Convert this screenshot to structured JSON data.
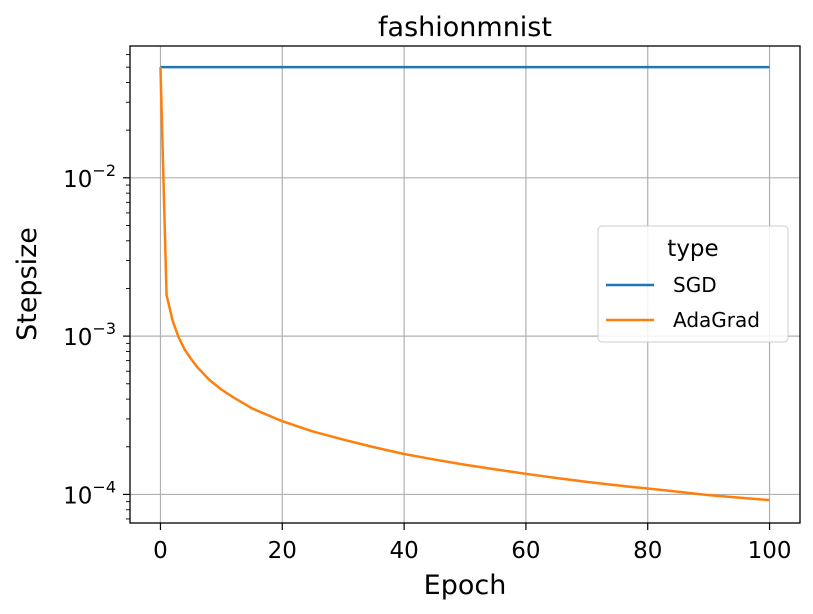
{
  "chart_data": {
    "type": "line",
    "title": "fashionmnist",
    "xlabel": "Epoch",
    "ylabel": "Stepsize",
    "xlim": [
      -5,
      105
    ],
    "ylim": [
      6.6e-05,
      0.068
    ],
    "yscale": "log",
    "grid": true,
    "x_ticks": [
      0,
      20,
      40,
      60,
      80,
      100
    ],
    "x_tick_labels": [
      "0",
      "20",
      "40",
      "60",
      "80",
      "100"
    ],
    "y_ticks": [
      0.0001,
      0.001,
      0.01
    ],
    "y_tick_labels": [
      {
        "base": "10",
        "exp": "−4"
      },
      {
        "base": "10",
        "exp": "−3"
      },
      {
        "base": "10",
        "exp": "−2"
      }
    ],
    "legend": {
      "title": "type",
      "placement": "center-right"
    },
    "series": [
      {
        "name": "SGD",
        "color": "#1f77b4",
        "x": [
          0,
          100
        ],
        "y": [
          0.05,
          0.05
        ]
      },
      {
        "name": "AdaGrad",
        "color": "#ff7f0e",
        "x": [
          0,
          1,
          2,
          3,
          4,
          5,
          6,
          8,
          10,
          12,
          15,
          20,
          25,
          30,
          35,
          40,
          45,
          50,
          55,
          60,
          65,
          70,
          75,
          80,
          85,
          90,
          95,
          100
        ],
        "y": [
          0.05,
          0.00182,
          0.00125,
          0.00098,
          0.00082,
          0.00072,
          0.00064,
          0.00053,
          0.00046,
          0.00041,
          0.00035,
          0.00029,
          0.00025,
          0.000222,
          0.000199,
          0.00018,
          0.000166,
          0.000154,
          0.000144,
          0.000135,
          0.000127,
          0.00012,
          0.000114,
          0.000109,
          0.000104,
          9.9e-05,
          9.55e-05,
          9.2e-05
        ]
      }
    ]
  }
}
